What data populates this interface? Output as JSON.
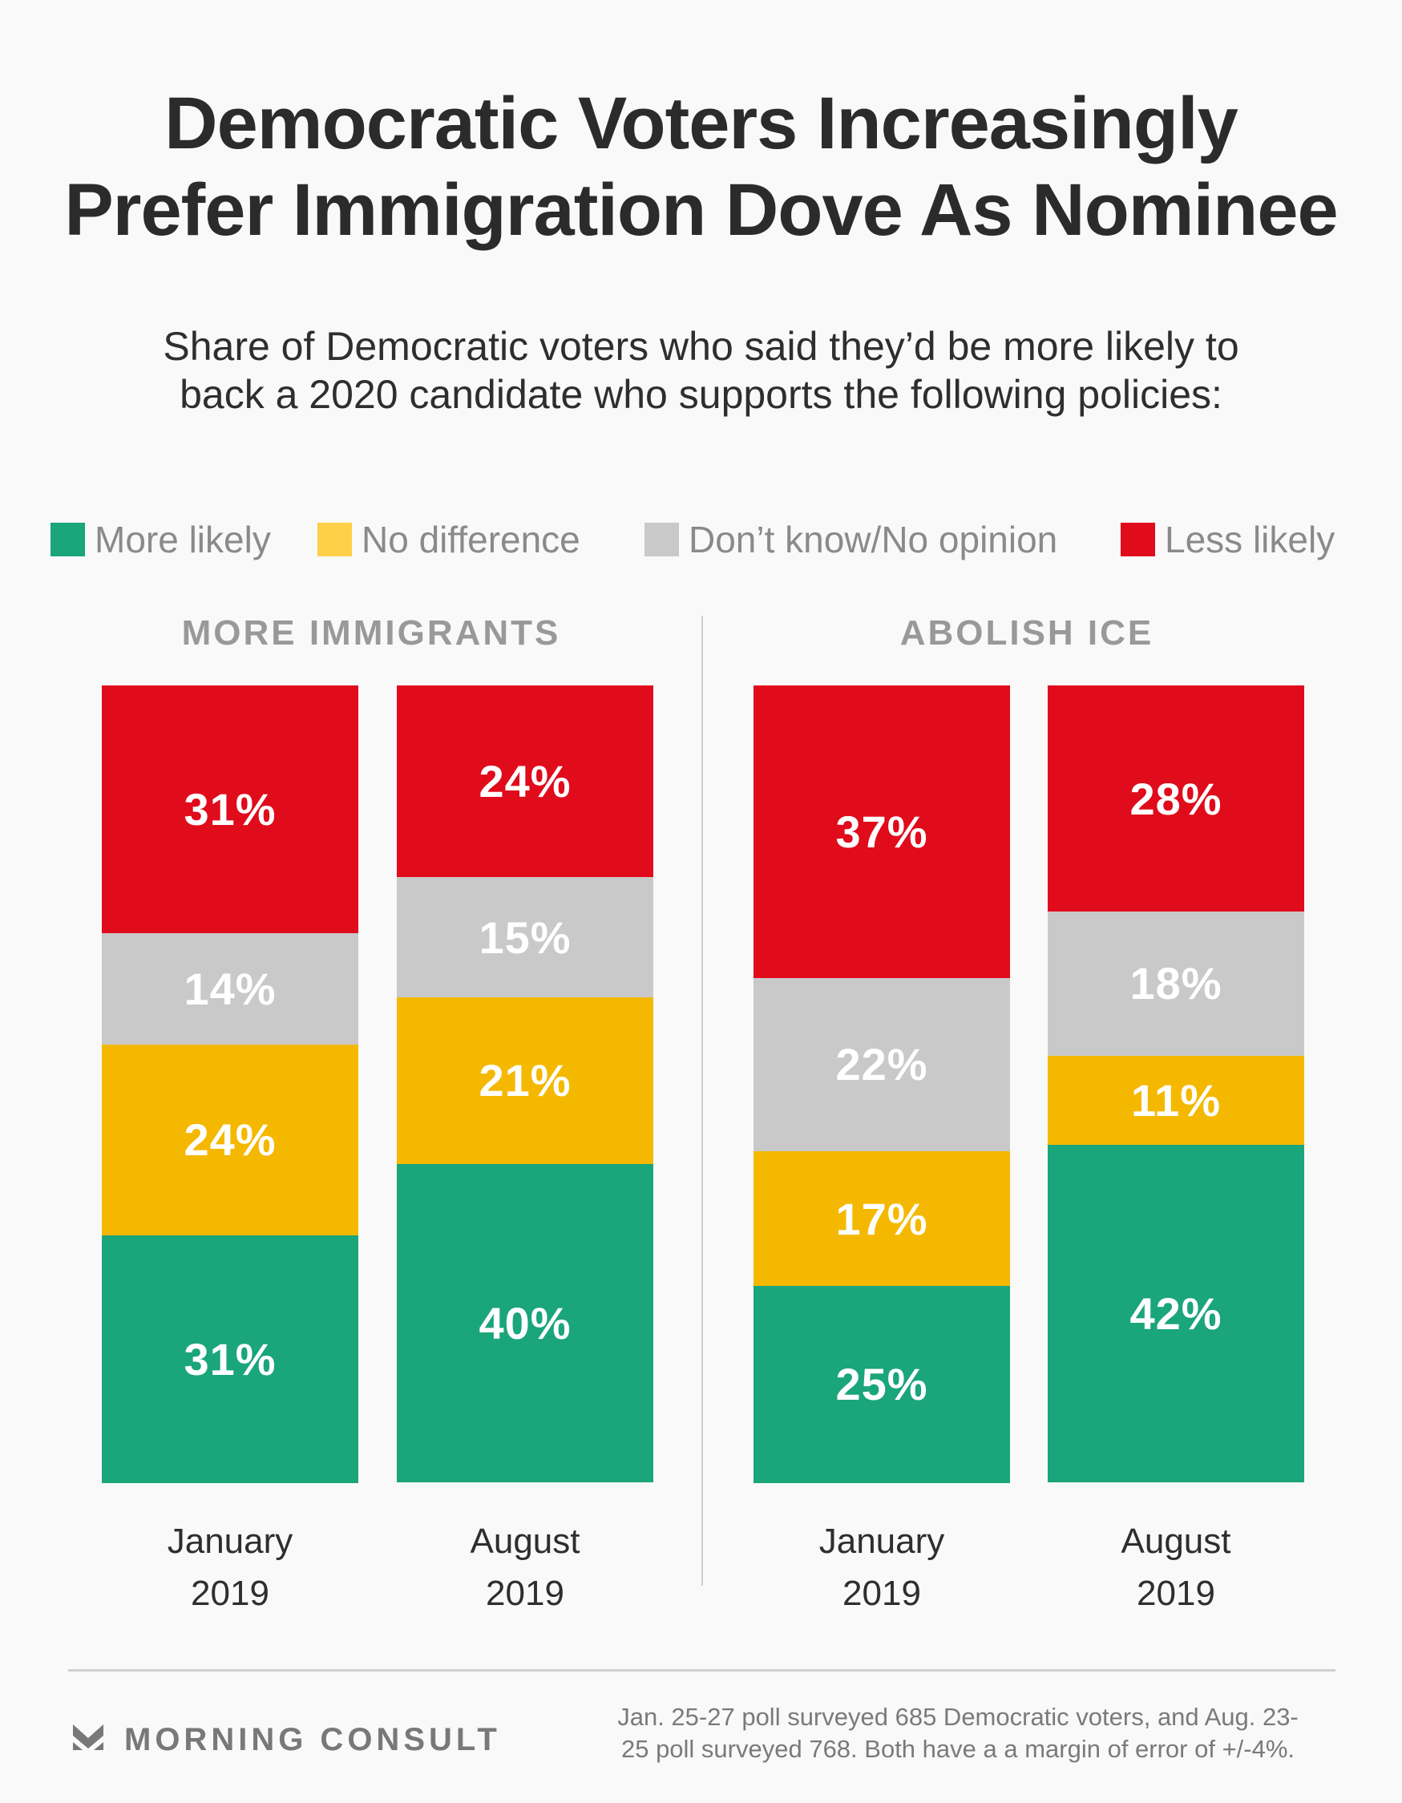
{
  "header": {
    "title_lines": [
      "Democratic Voters Increasingly",
      "Prefer Immigration Dove As Nominee"
    ],
    "subtitle_lines": [
      "Share of Democratic voters who said they’d be more likely to",
      "back a 2020 candidate who supports the following policies:"
    ]
  },
  "legend": [
    {
      "label": "More likely",
      "color": "#1aa57a"
    },
    {
      "label": "No difference",
      "color": "#fdd048"
    },
    {
      "label": "Don’t know/No opinion",
      "color": "#c9c9c9"
    },
    {
      "label": "Less likely",
      "color": "#e00b1b"
    }
  ],
  "colors": {
    "more_likely": "#1aa57a",
    "no_difference": "#f5b800",
    "dont_know": "#c9c9c9",
    "less_likely": "#e00b1b",
    "background": "#f9f9f9"
  },
  "chart_data": {
    "type": "bar",
    "stacked": true,
    "orientation": "vertical",
    "title": "Democratic Voters Increasingly Prefer Immigration Dove As Nominee",
    "subtitle": "Share of Democratic voters who said they’d be more likely to back a 2020 candidate who supports the following policies:",
    "legend_position": "top",
    "grid": false,
    "unit": "%",
    "panels": [
      {
        "title": "MORE IMMIGRANTS",
        "categories": [
          [
            "January",
            "2019"
          ],
          [
            "August",
            "2019"
          ]
        ],
        "series": [
          {
            "name": "More likely",
            "values": [
              31,
              40
            ]
          },
          {
            "name": "No difference",
            "values": [
              24,
              21
            ]
          },
          {
            "name": "Don’t know/No opinion",
            "values": [
              14,
              15
            ]
          },
          {
            "name": "Less likely",
            "values": [
              31,
              24
            ]
          }
        ]
      },
      {
        "title": "ABOLISH ICE",
        "categories": [
          [
            "January",
            "2019"
          ],
          [
            "August",
            "2019"
          ]
        ],
        "series": [
          {
            "name": "More likely",
            "values": [
              25,
              42
            ]
          },
          {
            "name": "No difference",
            "values": [
              17,
              11
            ]
          },
          {
            "name": "Don’t know/No opinion",
            "values": [
              22,
              18
            ]
          },
          {
            "name": "Less likely",
            "values": [
              37,
              28
            ]
          }
        ]
      }
    ]
  },
  "footer": {
    "brand": "MORNING CONSULT",
    "note_lines": [
      "Jan. 25-27 poll surveyed 685 Democratic voters, and Aug. 23-",
      "25 poll surveyed 768. Both have a a margin of error of +/-4%."
    ]
  }
}
